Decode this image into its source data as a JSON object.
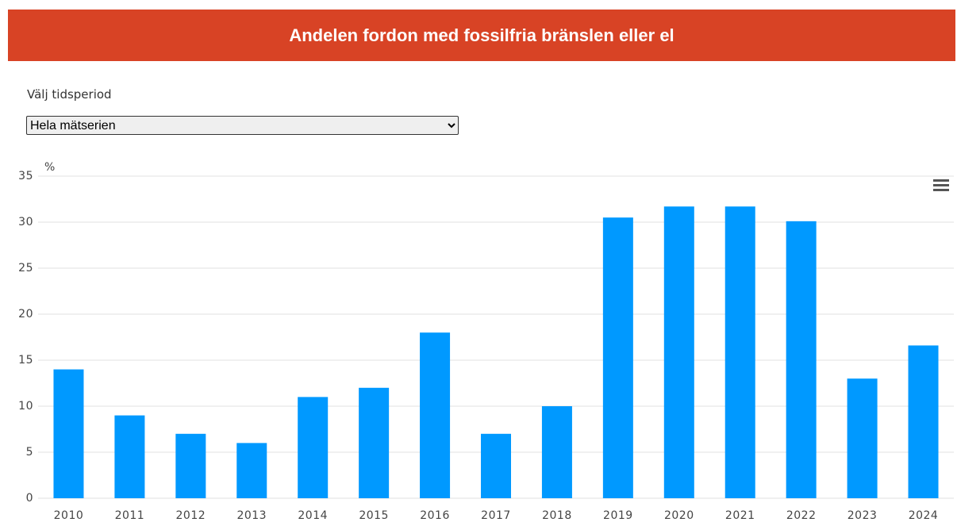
{
  "header": {
    "title": "Andelen fordon med fossilfria bränslen eller el"
  },
  "controls": {
    "label": "Välj tidsperiod",
    "selected": "Hela mätserien"
  },
  "chart_data": {
    "type": "bar",
    "y_label": "%",
    "categories": [
      "2010",
      "2011",
      "2012",
      "2013",
      "2014",
      "2015",
      "2016",
      "2017",
      "2018",
      "2019",
      "2020",
      "2021",
      "2022",
      "2023",
      "2024"
    ],
    "values": [
      14,
      9,
      7,
      6,
      11,
      12,
      18,
      7,
      10,
      30.5,
      31.7,
      31.7,
      30.1,
      13,
      16.6
    ],
    "color": "#0099ff",
    "ylim": [
      0,
      35
    ],
    "yticks": [
      0,
      5,
      10,
      15,
      20,
      25,
      30,
      35
    ],
    "grid": true
  }
}
